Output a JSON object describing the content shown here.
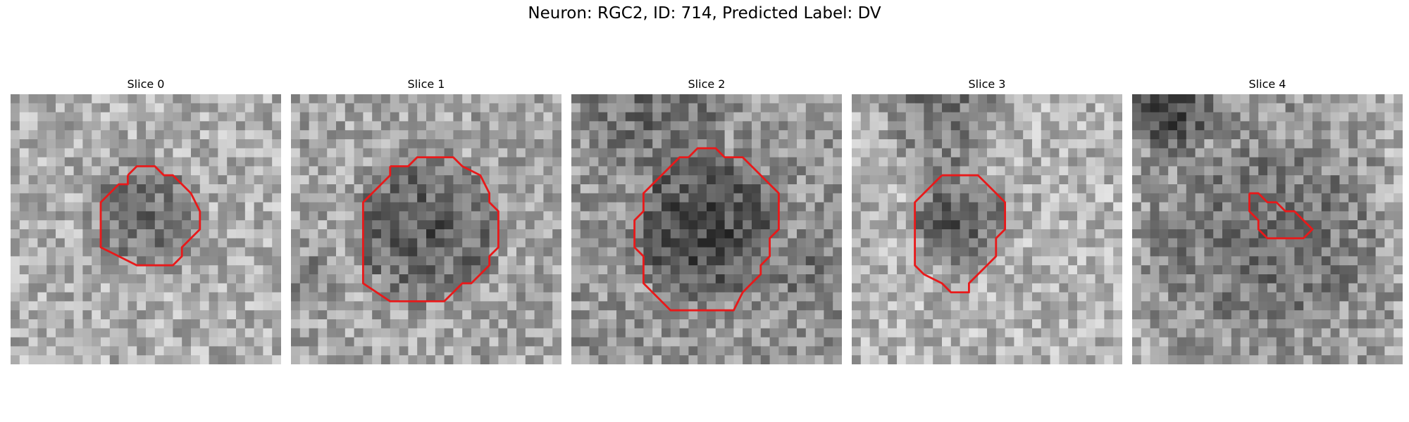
{
  "figure": {
    "title": "Neuron: RGC2, ID: 714, Predicted Label: DV",
    "outline_color": "#e8191a",
    "colormap": "grayscale",
    "slices": [
      {
        "title": "Slice 0",
        "contour": [
          [
            13,
            9
          ],
          [
            14,
            8
          ],
          [
            16,
            8
          ],
          [
            17,
            9
          ],
          [
            18,
            9
          ],
          [
            19,
            10
          ],
          [
            20,
            11
          ],
          [
            21,
            13
          ],
          [
            21,
            15
          ],
          [
            20,
            16
          ],
          [
            19,
            17
          ],
          [
            19,
            18
          ],
          [
            18,
            19
          ],
          [
            14,
            19
          ],
          [
            12,
            18
          ],
          [
            10,
            17
          ],
          [
            10,
            12
          ],
          [
            12,
            10
          ],
          [
            13,
            10
          ]
        ]
      },
      {
        "title": "Slice 1",
        "contour": [
          [
            11,
            8
          ],
          [
            13,
            8
          ],
          [
            14,
            7
          ],
          [
            18,
            7
          ],
          [
            19,
            8
          ],
          [
            21,
            9
          ],
          [
            22,
            11
          ],
          [
            22,
            12
          ],
          [
            23,
            13
          ],
          [
            23,
            15
          ],
          [
            23,
            16
          ],
          [
            23,
            17
          ],
          [
            22,
            18
          ],
          [
            22,
            19
          ],
          [
            21,
            20
          ],
          [
            20,
            21
          ],
          [
            19,
            21
          ],
          [
            18,
            22
          ],
          [
            17,
            23
          ],
          [
            11,
            23
          ],
          [
            8,
            21
          ],
          [
            8,
            12
          ],
          [
            10,
            10
          ],
          [
            11,
            9
          ]
        ]
      },
      {
        "title": "Slice 2",
        "contour": [
          [
            13,
            7
          ],
          [
            14,
            6
          ],
          [
            16,
            6
          ],
          [
            17,
            7
          ],
          [
            19,
            7
          ],
          [
            20,
            8
          ],
          [
            22,
            10
          ],
          [
            23,
            11
          ],
          [
            23,
            15
          ],
          [
            22,
            16
          ],
          [
            22,
            18
          ],
          [
            21,
            19
          ],
          [
            21,
            20
          ],
          [
            20,
            21
          ],
          [
            19,
            22
          ],
          [
            18,
            24
          ],
          [
            11,
            24
          ],
          [
            8,
            21
          ],
          [
            8,
            18
          ],
          [
            7,
            17
          ],
          [
            7,
            14
          ],
          [
            8,
            13
          ],
          [
            8,
            11
          ],
          [
            10,
            9
          ],
          [
            12,
            7
          ]
        ]
      },
      {
        "title": "Slice 3",
        "contour": [
          [
            10,
            9
          ],
          [
            14,
            9
          ],
          [
            16,
            11
          ],
          [
            17,
            12
          ],
          [
            17,
            15
          ],
          [
            16,
            16
          ],
          [
            16,
            18
          ],
          [
            14,
            20
          ],
          [
            13,
            21
          ],
          [
            13,
            22
          ],
          [
            11,
            22
          ],
          [
            10,
            21
          ],
          [
            8,
            20
          ],
          [
            7,
            19
          ],
          [
            7,
            12
          ],
          [
            9,
            10
          ]
        ]
      },
      {
        "title": "Slice 4",
        "contour": [
          [
            13,
            11
          ],
          [
            14,
            11
          ],
          [
            15,
            12
          ],
          [
            16,
            12
          ],
          [
            17,
            13
          ],
          [
            18,
            13
          ],
          [
            19,
            14
          ],
          [
            20,
            15
          ],
          [
            19,
            16
          ],
          [
            15,
            16
          ],
          [
            14,
            15
          ],
          [
            14,
            14
          ],
          [
            13,
            13
          ],
          [
            13,
            12
          ]
        ]
      }
    ]
  }
}
